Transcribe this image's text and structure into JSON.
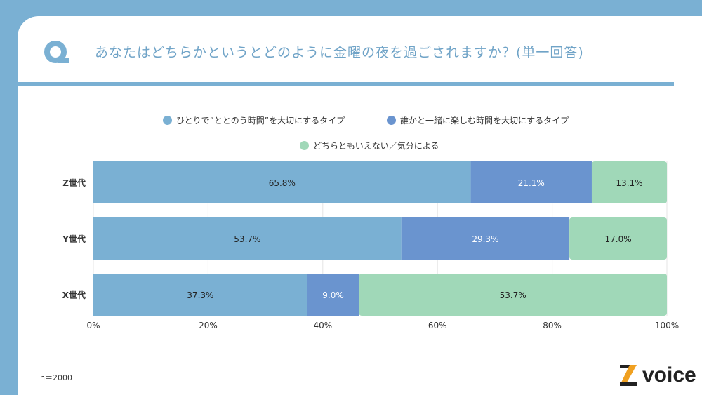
{
  "title": "あなたはどちらかというとどのように金曜の夜を過ごされますか？(単一回答)",
  "note": "n＝2000",
  "logo_text": "voice",
  "colors": {
    "series1": "#7ab0d3",
    "series2": "#6a94cf",
    "series3": "#a0d8b8",
    "accent": "#7ab0d3"
  },
  "chart_data": {
    "type": "bar",
    "orientation": "horizontal-stacked-100",
    "categories": [
      "Z世代",
      "Y世代",
      "X世代"
    ],
    "series": [
      {
        "name": "ひとりで”ととのう時間”を大切にするタイプ",
        "values": [
          65.8,
          53.7,
          37.3
        ],
        "labels": [
          "65.8%",
          "53.7%",
          "37.3%"
        ]
      },
      {
        "name": "誰かと一緒に楽しむ時間を大切にするタイプ",
        "values": [
          21.1,
          29.3,
          9.0
        ],
        "labels": [
          "21.1%",
          "29.3%",
          "9.0%"
        ]
      },
      {
        "name": "どちらともいえない／気分による",
        "values": [
          13.1,
          17.0,
          53.7
        ],
        "labels": [
          "13.1%",
          "17.0%",
          "53.7%"
        ]
      }
    ],
    "xlim": [
      0,
      100
    ],
    "xticks": [
      "0%",
      "20%",
      "40%",
      "60%",
      "80%",
      "100%"
    ],
    "grid": true,
    "legend_position": "top"
  }
}
